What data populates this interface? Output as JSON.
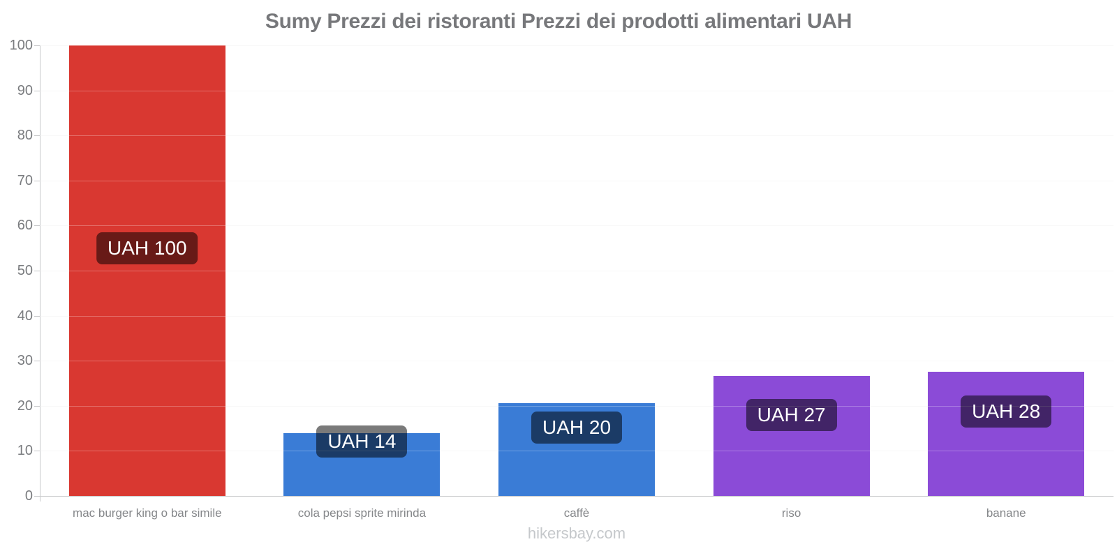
{
  "chart_data": {
    "type": "bar",
    "title": "Sumy Prezzi dei ristoranti Prezzi dei prodotti alimentari UAH",
    "xlabel": "",
    "ylabel": "",
    "categories": [
      "mac burger king o bar simile",
      "cola pepsi sprite mirinda",
      "caffè",
      "riso",
      "banane"
    ],
    "values": [
      100,
      14,
      20,
      27,
      28
    ],
    "value_labels": [
      "UAH 100",
      "UAH 14",
      "UAH 20",
      "UAH 27",
      "UAH 28"
    ],
    "bar_render_heights": [
      100,
      13.9,
      20.6,
      26.6,
      27.6
    ],
    "bar_colors": [
      "#d93831",
      "#3a7cd6",
      "#3a7cd6",
      "#8b4bd7",
      "#8b4bd7"
    ],
    "value_label_center_pos": [
      55,
      12,
      15.1,
      18,
      18.7
    ],
    "ylim": [
      0,
      100
    ],
    "yticks": [
      0,
      10,
      20,
      30,
      40,
      50,
      60,
      70,
      80,
      90,
      100
    ],
    "grid": "horizontal-faint",
    "legend": "none",
    "currency": "UAH"
  },
  "footer": {
    "watermark": "hikersbay.com"
  },
  "colors": {
    "title": "#77787b",
    "axis_line": "#c8c9cb",
    "tick_mark": "#c6c7c9",
    "ytick_label": "#7a7c7f",
    "category_label": "#85878a",
    "gridline_under": "rgba(20,20,20,0.045)",
    "gridline_over": "rgba(255,255,255,0.28)",
    "value_label_bg": "rgba(0,0,0,0.52)",
    "value_label_text": "#ffffff",
    "footer_text": "#c5c8cb",
    "background": "#ffffff"
  }
}
